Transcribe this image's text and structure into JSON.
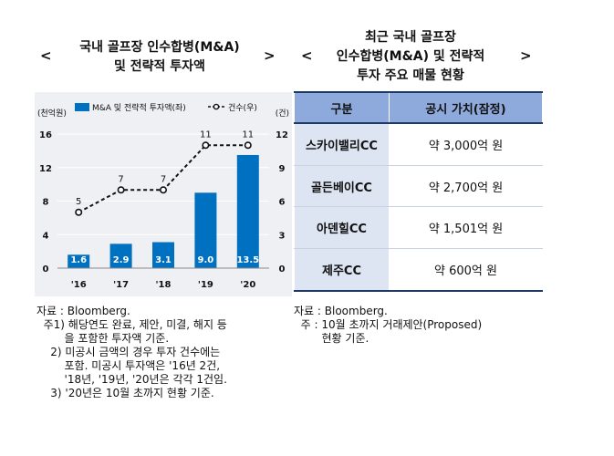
{
  "left_panel": {
    "title_line1": "국내 골프장 인수합병(M&A)",
    "title_line2": "및 전략적 투자액",
    "arrow_left": "<",
    "arrow_right": ">",
    "notes": [
      "자료 : Bloomberg.",
      "  주1) 해당연도 완료, 제안, 미결, 해지 등",
      "        을 포함한 투자액 기준.",
      "    2) 미공시 금액의 경우 투자 건수에는",
      "        포함. 미공시 투자액은 '16년 2건,",
      "        '18년, '19년, '20년은 각각 1건임.",
      "    3) '20년은 10월 초까지 현황 기준."
    ]
  },
  "chart_data": {
    "type": "bar",
    "categories": [
      "'16",
      "'17",
      "'18",
      "'19",
      "'20"
    ],
    "series": [
      {
        "name": "M&A 및 전략적 투자액(좌)",
        "type": "bar",
        "axis": "left",
        "values": [
          1.6,
          2.9,
          3.1,
          9.0,
          13.5
        ],
        "labels": [
          "1.6",
          "2.9",
          "3.1",
          "9.0",
          "13.5"
        ],
        "color": "#0070c0"
      },
      {
        "name": "건수(우)",
        "type": "line",
        "axis": "right",
        "values": [
          5,
          7,
          7,
          11,
          11
        ],
        "labels": [
          "5",
          "7",
          "7",
          "11",
          "11"
        ],
        "color": "#111111"
      }
    ],
    "left_unit": "(천억원)",
    "right_unit": "(건)",
    "left_ylim": [
      0,
      16
    ],
    "right_ylim": [
      0,
      12
    ],
    "left_ticks": [
      "0",
      "4",
      "8",
      "12",
      "16"
    ],
    "right_ticks": [
      "0",
      "3",
      "6",
      "9",
      "12"
    ],
    "grid": true,
    "legend": "top"
  },
  "right_panel": {
    "title_line1": "최근 국내 골프장",
    "title_line2": "인수합병(M&A) 및 전략적",
    "title_line3": "투자 주요 매물 현황",
    "arrow_left": "<",
    "arrow_right": ">",
    "table": {
      "headers": [
        "구분",
        "공시 가치(잠정)"
      ],
      "rows": [
        [
          "스카이밸리CC",
          "약 3,000억 원"
        ],
        [
          "골든베이CC",
          "약 2,700억 원"
        ],
        [
          "아덴힐CC",
          "약 1,501억 원"
        ],
        [
          "제주CC",
          "약 600억 원"
        ]
      ]
    },
    "notes": [
      "자료 : Bloomberg.",
      "  주 : 10월 초까지 거래제안(Proposed)",
      "        현황 기준."
    ]
  }
}
